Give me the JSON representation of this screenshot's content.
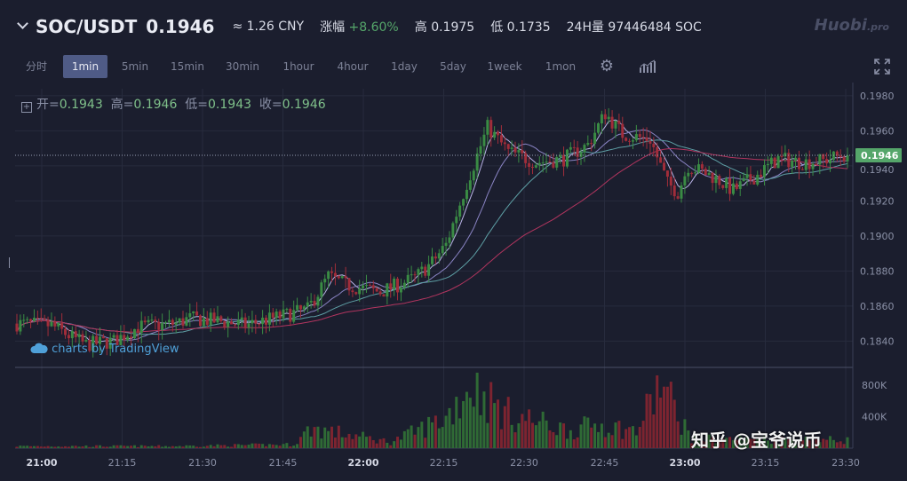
{
  "header": {
    "pair": "SOC/USDT",
    "last_price": "0.1946",
    "cny": "≈ 1.26 CNY",
    "change_label": "涨幅",
    "change_value": "+8.60%",
    "high": "高 0.1975",
    "low": "低 0.1735",
    "volume": "24H量 97446484 SOC",
    "logo": "Huobi",
    "logo_suffix": ".pro"
  },
  "toolbar": {
    "timeframes": [
      "分时",
      "1min",
      "5min",
      "15min",
      "30min",
      "1hour",
      "4hour",
      "1day",
      "5day",
      "1week",
      "1mon"
    ],
    "active": "1min",
    "icons": [
      "gear-icon",
      "indicators-icon",
      "fullscreen-icon"
    ]
  },
  "legend": {
    "open_label": "开=",
    "open": "0.1943",
    "high_label": "高=",
    "high": "0.1946",
    "low_label": "低=",
    "low": "0.1943",
    "close_label": "收=",
    "close": "0.1946"
  },
  "watermarks": {
    "tradingview": "charts by TradingView",
    "zhihu": "知乎 @宝爷说币"
  },
  "colors": {
    "background": "#1b1e2e",
    "up": "#3a8b44",
    "down": "#a12d3a",
    "ma_fast": "#b9b3e6",
    "ma_mid": "#5e9fa5",
    "ma_slow": "#b2355f",
    "price_tag": "#55a66a"
  },
  "chart_data": {
    "type": "candlestick",
    "x_ticks": [
      "21:00",
      "21:15",
      "21:30",
      "21:45",
      "22:00",
      "22:15",
      "22:30",
      "22:45",
      "23:00",
      "23:15",
      "23:30"
    ],
    "y_ticks": [
      "0.1840",
      "0.1860",
      "0.1880",
      "0.1900",
      "0.1920",
      "0.1940",
      "0.1960",
      "0.1980"
    ],
    "ylim": [
      0.1826,
      0.1984
    ],
    "last_price_label": "0.1946",
    "last_price": 0.1946,
    "volume_ticks": [
      "400K",
      "800K"
    ],
    "volume_max": 1000000,
    "grid": true,
    "price_path": [
      [
        0,
        0.185
      ],
      [
        10,
        0.1849
      ],
      [
        16,
        0.1842
      ],
      [
        20,
        0.1838
      ],
      [
        28,
        0.184
      ],
      [
        35,
        0.1848
      ],
      [
        46,
        0.185
      ],
      [
        50,
        0.1853
      ],
      [
        60,
        0.1851
      ],
      [
        66,
        0.1849
      ],
      [
        78,
        0.1855
      ],
      [
        84,
        0.1858
      ],
      [
        90,
        0.1877
      ],
      [
        95,
        0.1872
      ],
      [
        105,
        0.1868
      ],
      [
        115,
        0.1876
      ],
      [
        120,
        0.1885
      ],
      [
        124,
        0.1895
      ],
      [
        130,
        0.193
      ],
      [
        136,
        0.1962
      ],
      [
        142,
        0.1948
      ],
      [
        150,
        0.1942
      ],
      [
        158,
        0.1944
      ],
      [
        165,
        0.1952
      ],
      [
        170,
        0.197
      ],
      [
        175,
        0.1958
      ],
      [
        183,
        0.1955
      ],
      [
        188,
        0.193
      ],
      [
        191,
        0.1925
      ],
      [
        194,
        0.194
      ],
      [
        201,
        0.1934
      ],
      [
        207,
        0.1926
      ],
      [
        214,
        0.1935
      ],
      [
        220,
        0.1944
      ],
      [
        227,
        0.1942
      ],
      [
        233,
        0.1943
      ],
      [
        238,
        0.1946
      ]
    ],
    "volume_profile": [
      [
        0,
        30000
      ],
      [
        45,
        30000
      ],
      [
        80,
        55000
      ],
      [
        85,
        300000
      ],
      [
        108,
        90000
      ],
      [
        124,
        450000
      ],
      [
        131,
        950000
      ],
      [
        141,
        520000
      ],
      [
        160,
        260000
      ],
      [
        168,
        360000
      ],
      [
        179,
        250000
      ],
      [
        186,
        960000
      ],
      [
        195,
        140000
      ],
      [
        238,
        120000
      ]
    ]
  }
}
